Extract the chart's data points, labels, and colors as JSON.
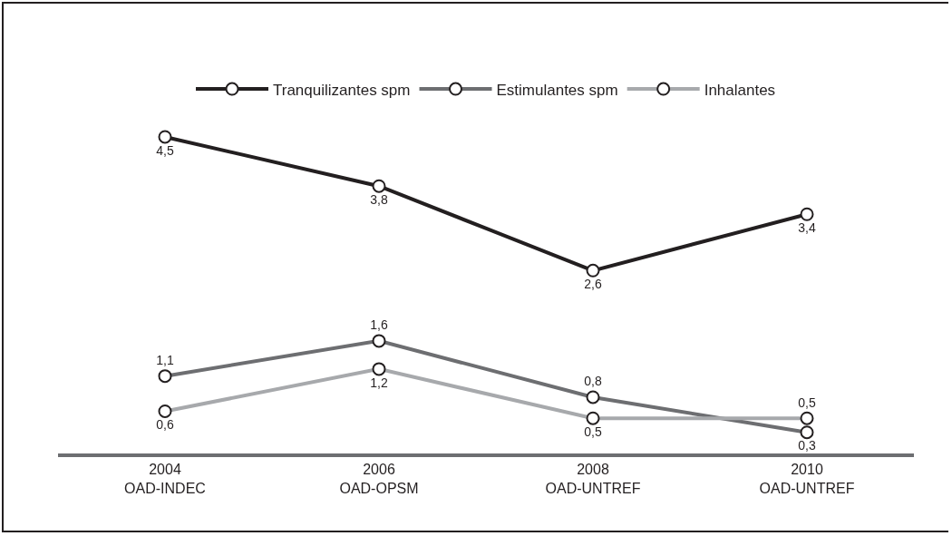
{
  "chart_data": {
    "type": "line",
    "categories": [
      "2004\nOAD-INDEC",
      "2006\nOAD-OPSM",
      "2008\nOAD-UNTREF",
      "2010\nOAD-UNTREF"
    ],
    "series": [
      {
        "name": "Tranquilizantes spm",
        "color": "#231f20",
        "values": [
          4.5,
          3.8,
          2.6,
          3.4
        ],
        "value_labels": [
          "4,5",
          "3,8",
          "2,6",
          "3,4"
        ]
      },
      {
        "name": "Estimulantes spm",
        "color": "#6d6e71",
        "values": [
          1.1,
          1.6,
          0.8,
          0.3
        ],
        "value_labels": [
          "1,1",
          "1,6",
          "0,8",
          "0,3"
        ]
      },
      {
        "name": "Inhalantes",
        "color": "#a7a9ac",
        "values": [
          0.6,
          1.2,
          0.5,
          0.5
        ],
        "value_labels": [
          "0,6",
          "1,2",
          "0,5",
          "0,5"
        ]
      }
    ],
    "tick_labels": "x",
    "grid": false,
    "legend": "top",
    "marker": "circle",
    "line_style": "solid"
  }
}
